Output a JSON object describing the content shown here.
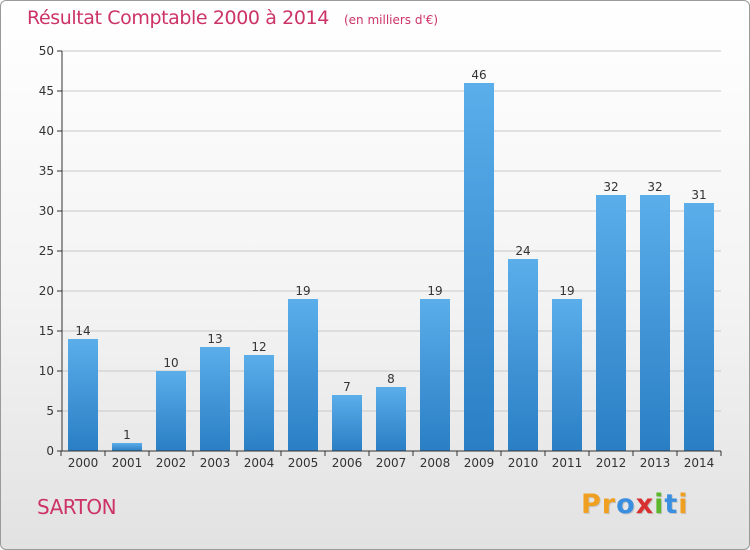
{
  "header": {
    "title": "Résultat Comptable 2000 à 2014",
    "unit": "(en milliers d'€)"
  },
  "commune": "SARTON",
  "logo": {
    "text": "Proxiti",
    "letters": [
      {
        "ch": "P",
        "color": "#f0a020"
      },
      {
        "ch": "r",
        "color": "#f0a020"
      },
      {
        "ch": "o",
        "color": "#3a8ee0"
      },
      {
        "ch": "x",
        "color": "#d83030"
      },
      {
        "ch": "i",
        "color": "#5cb82a"
      },
      {
        "ch": "t",
        "color": "#3a8ee0"
      },
      {
        "ch": "i",
        "color": "#f0a020"
      }
    ]
  },
  "colors": {
    "title": "#cc3366",
    "bar_top": "#5aaeea",
    "bar_bottom": "#2a7ec4",
    "axis": "#333333",
    "grid": "#c8c8c8"
  },
  "chart_data": {
    "type": "bar",
    "title": "Résultat Comptable 2000 à 2014",
    "xlabel": "",
    "ylabel": "(en milliers d'€)",
    "ylim": [
      0,
      50
    ],
    "yticks": [
      0,
      5,
      10,
      15,
      20,
      25,
      30,
      35,
      40,
      45,
      50
    ],
    "grid": true,
    "categories": [
      "2000",
      "2001",
      "2002",
      "2003",
      "2004",
      "2005",
      "2006",
      "2007",
      "2008",
      "2009",
      "2010",
      "2011",
      "2012",
      "2013",
      "2014"
    ],
    "values": [
      14,
      1,
      10,
      13,
      12,
      19,
      7,
      8,
      19,
      46,
      24,
      19,
      32,
      32,
      31
    ]
  }
}
